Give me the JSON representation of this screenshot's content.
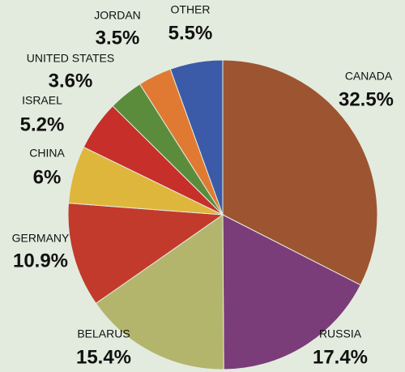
{
  "chart_data": {
    "type": "pie",
    "categories": [
      "CANADA",
      "RUSSIA",
      "BELARUS",
      "GERMANY",
      "CHINA",
      "ISRAEL",
      "UNITED STATES",
      "JORDAN",
      "OTHER"
    ],
    "values": [
      32.5,
      17.4,
      15.4,
      10.9,
      6,
      5.2,
      3.6,
      3.5,
      5.5
    ],
    "value_labels": [
      "32.5%",
      "17.4%",
      "15.4%",
      "10.9%",
      "6%",
      "5.2%",
      "3.6%",
      "3.5%",
      "5.5%"
    ],
    "colors": [
      "#9c5530",
      "#7b3c7a",
      "#b3b56c",
      "#c23a2c",
      "#dfb63c",
      "#c62f2a",
      "#5b8c3c",
      "#e07a32",
      "#3b5ba8"
    ]
  }
}
